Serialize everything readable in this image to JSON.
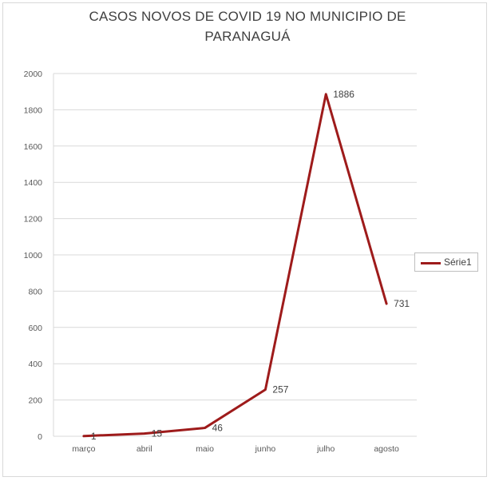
{
  "chart_data": {
    "type": "line",
    "title_lines": [
      "CASOS NOVOS DE COVID 19 NO MUNICIPIO DE",
      "PARANAGUÁ"
    ],
    "categories": [
      "março",
      "abril",
      "maio",
      "junho",
      "julho",
      "agosto"
    ],
    "series": [
      {
        "name": "Série1",
        "values": [
          1,
          15,
          46,
          257,
          1886,
          731
        ],
        "labels": [
          "1",
          "15",
          "46",
          "257",
          "1886",
          "731"
        ]
      }
    ],
    "ylim": [
      0,
      2000
    ],
    "yticks": [
      "0",
      "200",
      "400",
      "600",
      "800",
      "1000",
      "1200",
      "1400",
      "1600",
      "1800",
      "2000"
    ],
    "grid": true,
    "legend_position": "right",
    "line_color": "#9e1b1b"
  }
}
